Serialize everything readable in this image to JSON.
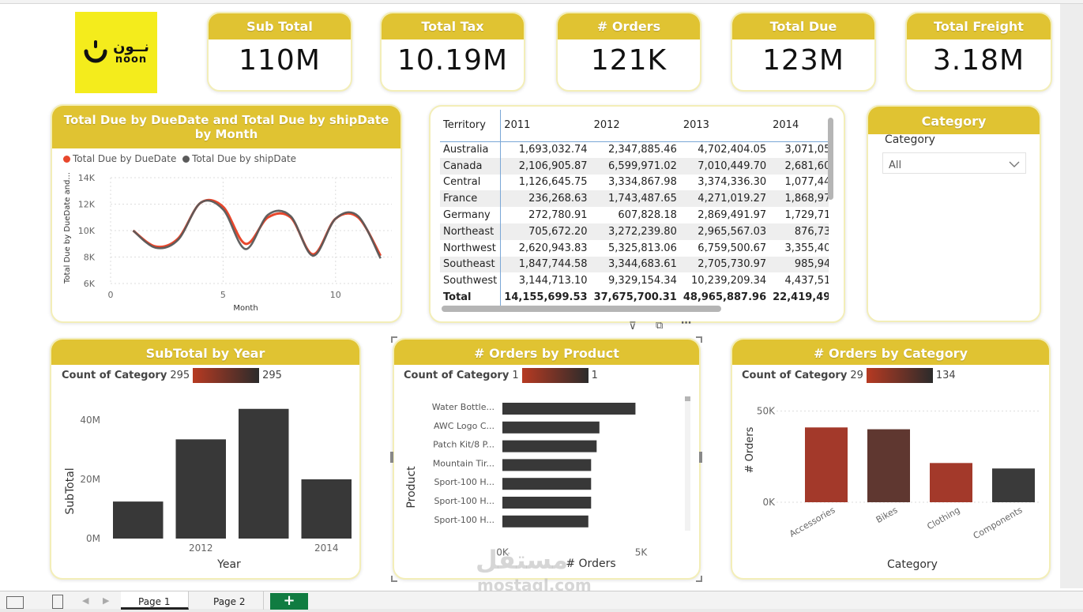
{
  "logo": {
    "text_ar": "نــون",
    "text_en": "noon"
  },
  "kpis": [
    {
      "label": "Sub Total",
      "value": "110M"
    },
    {
      "label": "Total Tax",
      "value": "10.19M"
    },
    {
      "label": "# Orders",
      "value": "121K"
    },
    {
      "label": "Total Due",
      "value": "123M"
    },
    {
      "label": "Total Freight",
      "value": "3.18M"
    }
  ],
  "line_chart": {
    "title": "Total Due by DueDate and Total Due by shipDate by Month",
    "legend": [
      "Total Due by DueDate",
      "Total Due by shipDate"
    ],
    "ylabel": "Total Due by DueDate and...",
    "xlabel": "Month",
    "yticks": [
      "14K",
      "12K",
      "10K",
      "8K",
      "6K"
    ],
    "xticks": [
      "0",
      "5",
      "10"
    ]
  },
  "matrix": {
    "headers": [
      "Territory",
      "2011",
      "2012",
      "2013",
      "2014"
    ],
    "rows": [
      [
        "Australia",
        "1,693,032.74",
        "2,347,885.46",
        "4,702,404.05",
        "3,071,05"
      ],
      [
        "Canada",
        "2,106,905.87",
        "6,599,971.02",
        "7,010,449.70",
        "2,681,60"
      ],
      [
        "Central",
        "1,126,645.75",
        "3,334,867.98",
        "3,374,336.30",
        "1,077,44"
      ],
      [
        "France",
        "236,268.63",
        "1,743,487.65",
        "4,271,019.27",
        "1,868,97"
      ],
      [
        "Germany",
        "272,780.91",
        "607,828.18",
        "2,869,491.97",
        "1,729,71"
      ],
      [
        "Northeast",
        "705,672.20",
        "3,272,239.80",
        "2,965,567.03",
        "876,73"
      ],
      [
        "Northwest",
        "2,620,943.83",
        "5,325,813.06",
        "6,759,500.67",
        "3,355,40"
      ],
      [
        "Southeast",
        "1,847,744.58",
        "3,344,683.61",
        "2,705,730.97",
        "985,94"
      ],
      [
        "Southwest",
        "3,144,713.10",
        "9,329,154.34",
        "10,239,209.34",
        "4,437,51"
      ]
    ],
    "total": [
      "Total",
      "14,155,699.53",
      "37,675,700.31",
      "48,965,887.96",
      "22,419,49"
    ]
  },
  "slicer": {
    "title": "Category",
    "label": "Category",
    "value": "All"
  },
  "subtotal_chart": {
    "title": "SubTotal by Year",
    "legend_label": "Count of Category",
    "legend_min": "295",
    "legend_max": "295",
    "ylabel": "SubTotal",
    "xlabel": "Year",
    "yticks": [
      "40M",
      "20M",
      "0M"
    ],
    "xticks": [
      "2012",
      "2014"
    ]
  },
  "product_chart": {
    "title": "# Orders by Product",
    "legend_label": "Count of Category",
    "legend_min": "1",
    "legend_max": "1",
    "ylabel": "Product",
    "xlabel": "# Orders",
    "xticks": [
      "0K",
      "5K"
    ],
    "categories": [
      "Water Bottle...",
      "AWC Logo C...",
      "Patch Kit/8 P...",
      "Mountain Tir...",
      "Sport-100 H...",
      "Sport-100 H...",
      "Sport-100 H..."
    ]
  },
  "category_chart": {
    "title": "# Orders by Category",
    "legend_label": "Count of Category",
    "legend_min": "29",
    "legend_max": "134",
    "ylabel": "# Orders",
    "xlabel": "Category",
    "yticks": [
      "50K",
      "0K"
    ],
    "categories": [
      "Accessories",
      "Bikes",
      "Clothing",
      "Components"
    ]
  },
  "chart_data": [
    {
      "type": "line",
      "title": "Total Due by DueDate and Total Due by shipDate by Month",
      "xlabel": "Month",
      "ylabel": "Total Due by DueDate and...",
      "x": [
        1,
        2,
        3,
        4,
        5,
        6,
        7,
        8,
        9,
        10,
        11,
        12
      ],
      "xlim": [
        0,
        12.5
      ],
      "ylim": [
        6000,
        14000
      ],
      "series": [
        {
          "name": "Total Due by DueDate",
          "color": "#e8472c",
          "values": [
            10000,
            8800,
            9400,
            12100,
            11800,
            9000,
            11000,
            11000,
            8200,
            10900,
            11000,
            8100
          ]
        },
        {
          "name": "Total Due by shipDate",
          "color": "#5a5a5a",
          "values": [
            10000,
            8700,
            9300,
            12100,
            11600,
            8600,
            11200,
            11100,
            8100,
            10900,
            11100,
            7900
          ]
        }
      ]
    },
    {
      "type": "bar",
      "title": "SubTotal by Year",
      "xlabel": "Year",
      "ylabel": "SubTotal",
      "x": [
        2011,
        2012,
        2013,
        2014
      ],
      "values": [
        12500000,
        33500000,
        43800000,
        20000000
      ],
      "ylim": [
        0,
        48000000
      ]
    },
    {
      "type": "bar",
      "orientation": "horizontal",
      "title": "# Orders by Product",
      "xlabel": "# Orders",
      "ylabel": "Product",
      "categories": [
        "Water Bottle...",
        "AWC Logo C...",
        "Patch Kit/8 P...",
        "Mountain Tir...",
        "Sport-100 H...",
        "Sport-100 H...",
        "Sport-100 H..."
      ],
      "values": [
        4800,
        3500,
        3400,
        3200,
        3200,
        3200,
        3100
      ],
      "xlim": [
        0,
        5500
      ]
    },
    {
      "type": "bar",
      "title": "# Orders by Category",
      "xlabel": "Category",
      "ylabel": "# Orders",
      "categories": [
        "Accessories",
        "Bikes",
        "Clothing",
        "Components"
      ],
      "values": [
        41000,
        40000,
        21500,
        18500
      ],
      "colors": [
        "#a3392a",
        "#5f3730",
        "#a3392a",
        "#3a3a3a"
      ],
      "ylim": [
        0,
        58000
      ]
    }
  ],
  "tabs": {
    "page1": "Page 1",
    "page2": "Page 2",
    "add": "+"
  },
  "watermark": {
    "ar": "مستقل",
    "en": "mostaql.com"
  }
}
